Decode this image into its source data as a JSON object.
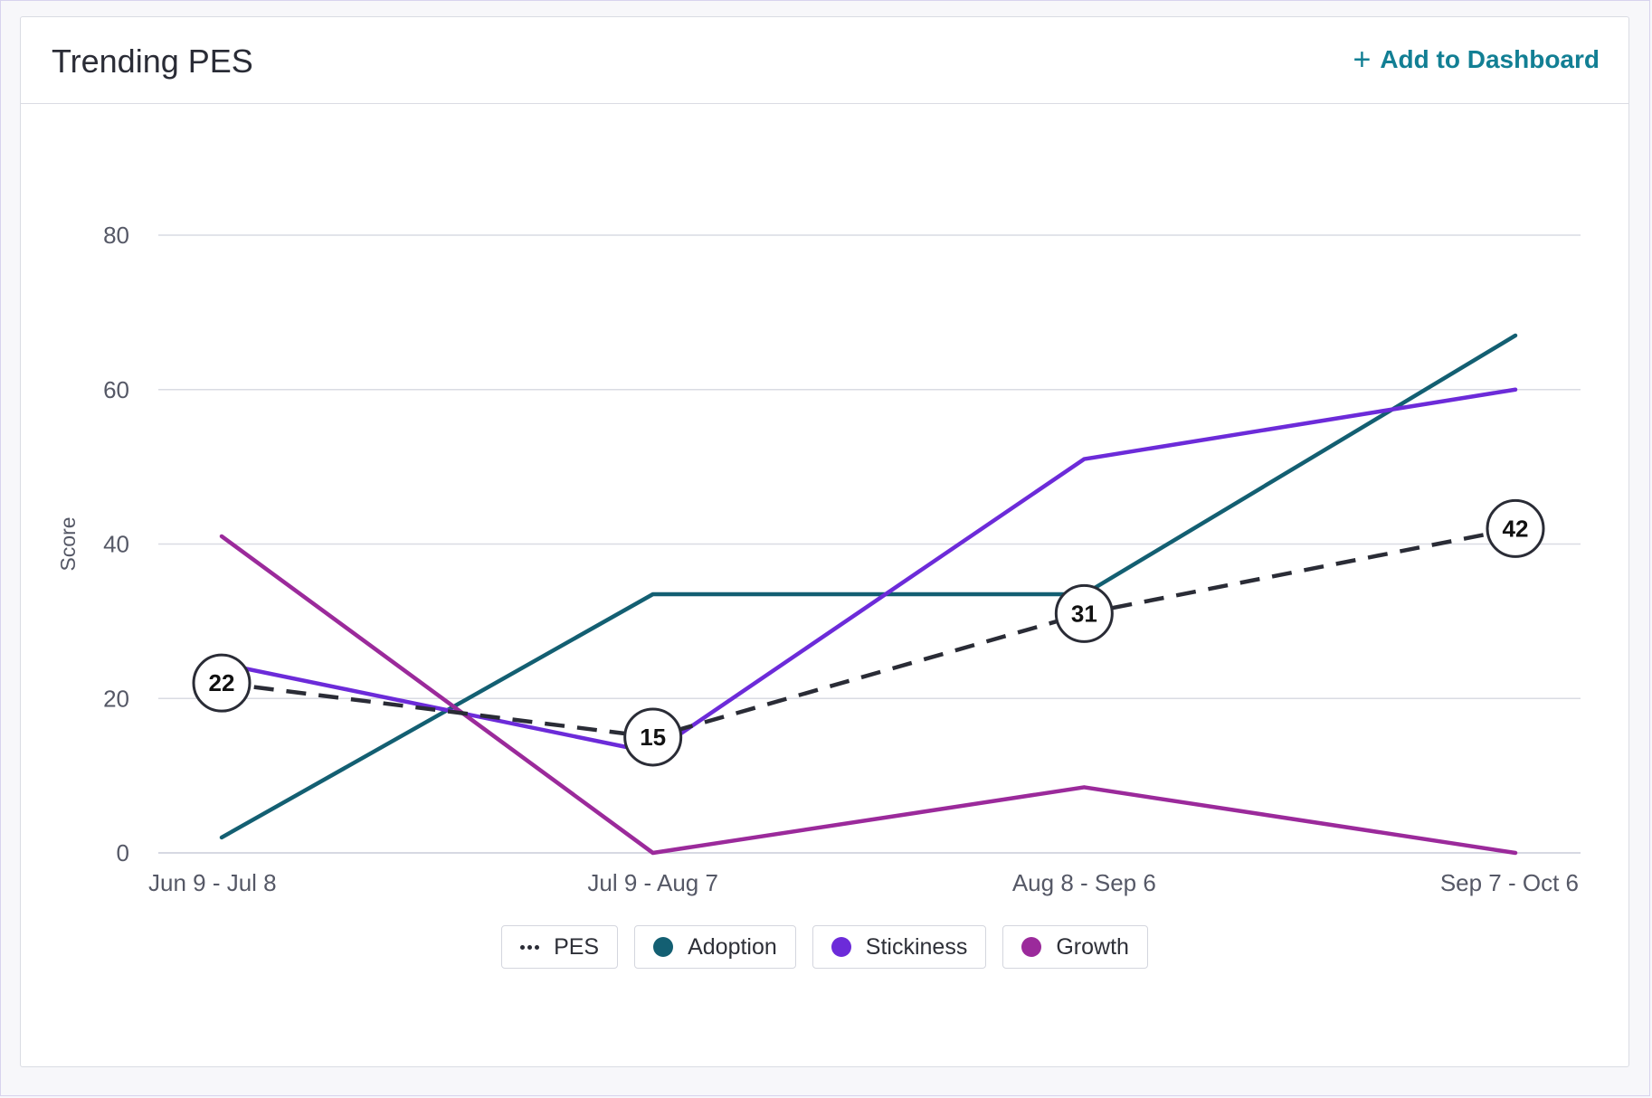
{
  "card": {
    "title": "Trending PES",
    "add_label": "Add to Dashboard",
    "add_icon": "plus-icon"
  },
  "colors": {
    "pes": "#2a2c36",
    "adoption": "#135f72",
    "stickiness": "#6c2bd9",
    "growth": "#9b2a9b",
    "grid": "#d9dbe3",
    "axis_text": "#555866",
    "accent": "#127f94"
  },
  "chart_data": {
    "type": "line",
    "ylabel": "Score",
    "ylim": [
      0,
      80
    ],
    "yticks": [
      0,
      20,
      40,
      60,
      80
    ],
    "grid": true,
    "legend_position": "bottom",
    "categories": [
      "Jun 9 - Jul 8",
      "Jul 9 - Aug 7",
      "Aug 8 - Sep 6",
      "Sep 7 - Oct 6"
    ],
    "series": [
      {
        "name": "PES",
        "key": "pes",
        "style": "dashed",
        "values": [
          22,
          15,
          31,
          42
        ],
        "labels": [
          "22",
          "15",
          "31",
          "42"
        ]
      },
      {
        "name": "Adoption",
        "key": "adoption",
        "style": "solid",
        "values": [
          2,
          33.5,
          33.5,
          67
        ]
      },
      {
        "name": "Stickiness",
        "key": "stickiness",
        "style": "solid",
        "values": [
          24.5,
          13,
          51,
          60
        ]
      },
      {
        "name": "Growth",
        "key": "growth",
        "style": "solid",
        "values": [
          41,
          0,
          8.5,
          0
        ]
      }
    ]
  }
}
